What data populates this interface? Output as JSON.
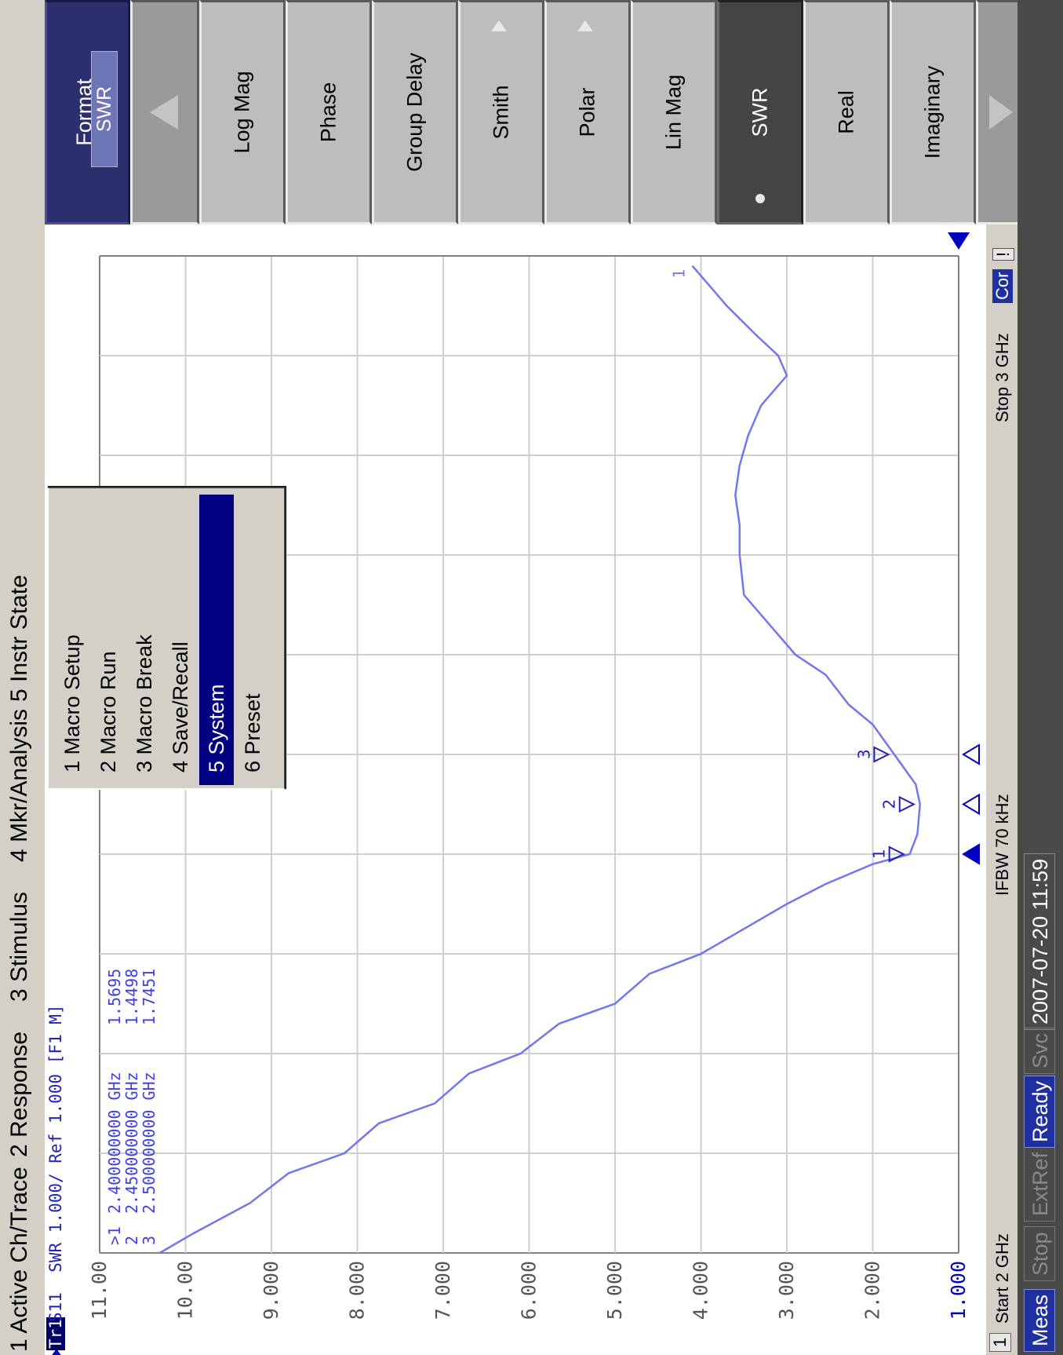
{
  "menu": [
    "1 Active Ch/Trace",
    "2 Response",
    "3 Stimulus",
    "4 Mkr/Analysis",
    "5 Instr State"
  ],
  "popup": {
    "items": [
      "1 Macro Setup",
      "2 Macro Run",
      "3 Macro Break",
      "4 Save/Recall",
      "5 System",
      "6 Preset"
    ],
    "selected": "5 System"
  },
  "trace_title": {
    "trace": "Tr1",
    "text": "S11  SWR 1.000/ Ref 1.000 [F1 M]"
  },
  "marker_table": [
    {
      "id": ">1",
      "freq": "2.400000000 GHz",
      "value": "1.5695"
    },
    {
      "id": "2",
      "freq": "2.450000000 GHz",
      "value": "1.4498"
    },
    {
      "id": "3",
      "freq": "2.500000000 GHz",
      "value": "1.7451"
    }
  ],
  "status_line": {
    "channel": "1",
    "start": "Start 2 GHz",
    "ifbw": "IFBW 70 kHz",
    "stop": "Stop 3 GHz",
    "cor": "Cor",
    "excl": "!"
  },
  "softkeys": {
    "format_title": "Format",
    "format_value": "SWR",
    "items": [
      "Log Mag",
      "Phase",
      "Group Delay",
      "Smith",
      "Polar",
      "Lin Mag",
      "SWR",
      "Real",
      "Imaginary"
    ],
    "selected": "SWR"
  },
  "bottom_bar": {
    "meas": "Meas",
    "stop": "Stop",
    "extref": "ExtRef",
    "ready": "Ready",
    "svc": "Svc",
    "datetime": "2007-07-20 11:59"
  },
  "chart_data": {
    "type": "line",
    "xlim": [
      2,
      3
    ],
    "ylim": [
      1,
      11
    ],
    "yticks": [
      "11.00",
      "10.00",
      "9.000",
      "8.000",
      "7.000",
      "6.000",
      "5.000",
      "4.000",
      "3.000",
      "2.000",
      "1.000"
    ],
    "grid": true,
    "color": "#6f78f0",
    "series": [
      {
        "x": [
          2.0,
          2.02,
          2.05,
          2.08,
          2.1,
          2.13,
          2.15,
          2.18,
          2.2,
          2.23,
          2.25,
          2.28,
          2.3,
          2.32,
          2.35,
          2.37,
          2.39,
          2.4,
          2.42,
          2.44,
          2.45,
          2.47,
          2.5,
          2.53,
          2.55,
          2.58,
          2.6,
          2.63,
          2.66,
          2.7,
          2.73,
          2.76,
          2.79,
          2.82,
          2.85,
          2.88,
          2.9,
          2.92,
          2.95,
          2.97,
          2.99
        ],
        "y": [
          10.3,
          9.9,
          9.25,
          8.8,
          8.15,
          7.75,
          7.1,
          6.7,
          6.1,
          5.65,
          5.0,
          4.6,
          4.0,
          3.6,
          3.0,
          2.55,
          2.0,
          1.57,
          1.48,
          1.46,
          1.45,
          1.5,
          1.75,
          2.0,
          2.28,
          2.55,
          2.9,
          3.2,
          3.5,
          3.55,
          3.55,
          3.6,
          3.55,
          3.45,
          3.3,
          3.0,
          3.1,
          3.35,
          3.7,
          3.9,
          4.1
        ]
      }
    ],
    "markers": [
      {
        "id": "1",
        "x": 2.4,
        "y": 1.5695
      },
      {
        "id": "2",
        "x": 2.45,
        "y": 1.4498
      },
      {
        "id": "3",
        "x": 2.5,
        "y": 1.7451
      }
    ],
    "end_label": "1"
  }
}
